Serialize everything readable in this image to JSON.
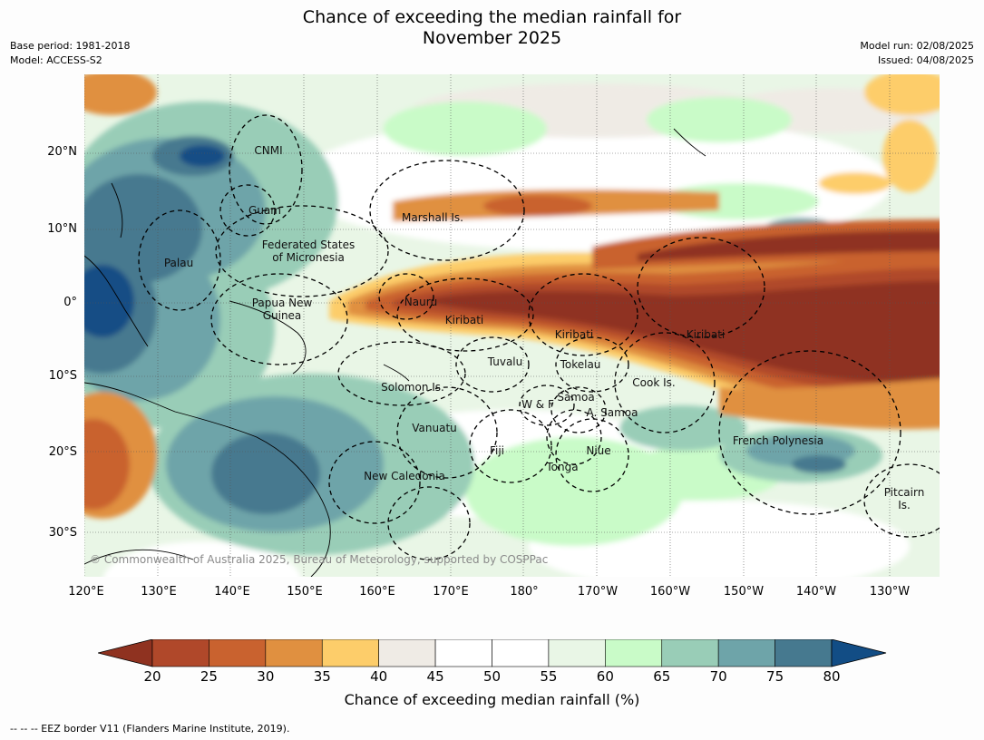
{
  "title_line1": "Chance of exceeding the median rainfall for",
  "title_line2": "November 2025",
  "base_period": "Base period: 1981-2018",
  "model": "Model: ACCESS-S2",
  "model_run": "Model run: 02/08/2025",
  "issued": "Issued: 04/08/2025",
  "lat_labels": [
    "20°N",
    "10°N",
    "0°",
    "10°S",
    "20°S",
    "30°S"
  ],
  "lon_labels": [
    "120°E",
    "130°E",
    "140°E",
    "150°E",
    "160°E",
    "170°E",
    "180°",
    "170°W",
    "160°W",
    "150°W",
    "140°W",
    "130°W"
  ],
  "regions": {
    "cnmi": "CNMI",
    "guam": "Guam",
    "marshall": "Marshall Is.",
    "fsm_line1": "Federated States",
    "fsm_line2": "of Micronesia",
    "palau": "Palau",
    "nauru": "Nauru",
    "png_line1": "Papua New",
    "png_line2": "Guinea",
    "kiribati_west": "Kiribati",
    "kiribati_central": "Kiribati",
    "kiribati_east": "Kiribati",
    "tuvalu": "Tuvalu",
    "tokelau": "Tokelau",
    "solomon": "Solomon Is.",
    "cook": "Cook Is.",
    "wf": "W & F",
    "samoa": "Samoa",
    "amsamoa": "A. Samoa",
    "vanuatu": "Vanuatu",
    "fiji": "Fiji",
    "niue": "Niue",
    "french_polynesia": "French Polynesia",
    "tonga": "Tonga",
    "new_caledonia": "New Caledonia",
    "pitcairn_line1": "Pitcairn",
    "pitcairn_line2": "Is."
  },
  "copyright": "© Commonwealth of Australia 2025, Bureau of Meteorology, supported by COSPPac",
  "colorbar": {
    "ticks": [
      "20",
      "25",
      "30",
      "35",
      "40",
      "45",
      "50",
      "55",
      "60",
      "65",
      "70",
      "75",
      "80"
    ],
    "under_color": "#8f3220",
    "over_color": "#124d85",
    "colors": [
      "#b0482a",
      "#c9622f",
      "#e09040",
      "#fdcd6a",
      "#efebe5",
      "#ffffff",
      "#ffffff",
      "#e9f6e6",
      "#c9fbc8",
      "#99cdb7",
      "#6ea4a9",
      "#46798f"
    ],
    "label": "Chance of exceeding median rainfall (%)"
  },
  "eez_note": "--  --  -- EEZ border V11 (Flanders Marine Institute, 2019)."
}
